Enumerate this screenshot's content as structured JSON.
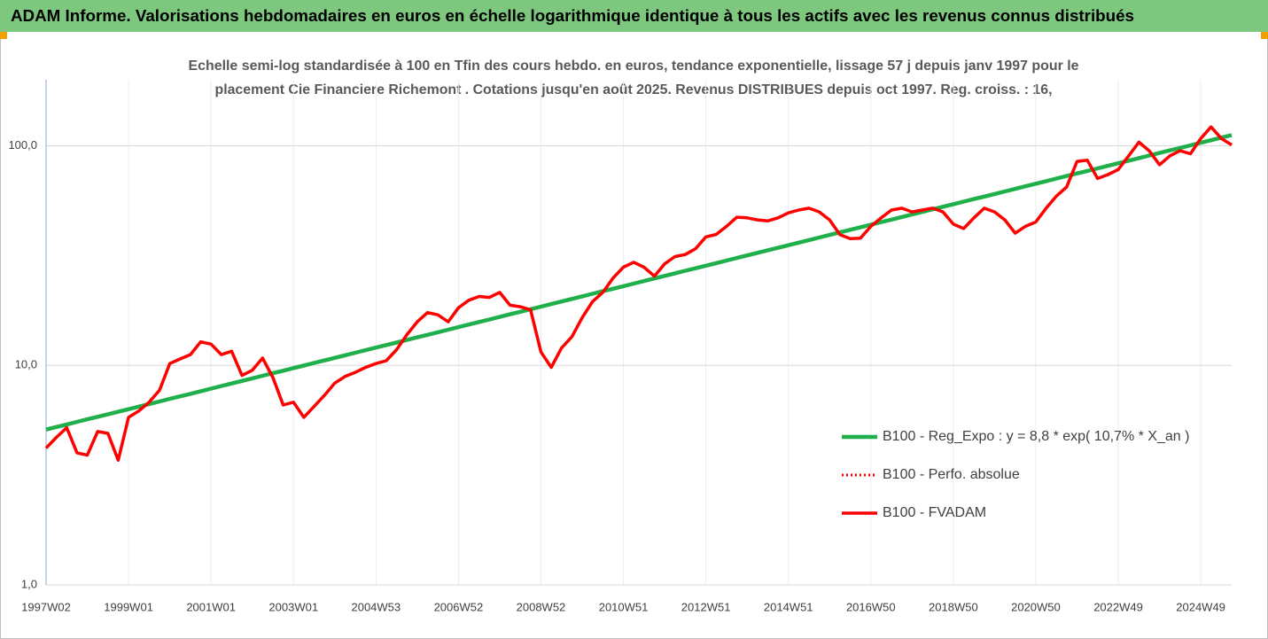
{
  "header": {
    "title": "ADAM Informe. Valorisations hebdomadaires en euros en échelle logarithmique identique à tous les actifs avec les revenus connus distribués"
  },
  "chart_data": {
    "type": "line",
    "title": [
      "Echelle semi-log standardisée à 100 en Tfin des cours hebdo. en euros, tendance exponentielle, lissage 57 j depuis janv 1997 pour le",
      "placement Cie Financiere Richemont . Cotations jusqu'en août 2025. Revenus DISTRIBUES depuis oct 1997. Reg. croiss. : 16,"
    ],
    "log_scale": true,
    "grid": true,
    "legend": "right",
    "ylim": [
      1,
      200
    ],
    "yticks": [
      {
        "value": 1,
        "label": "1,0"
      },
      {
        "value": 10,
        "label": "10,0"
      },
      {
        "value": 100,
        "label": "100,0"
      }
    ],
    "categories": [
      "1997W02",
      null,
      null,
      null,
      null,
      null,
      null,
      null,
      "1999W01",
      null,
      null,
      null,
      null,
      null,
      null,
      null,
      "2001W01",
      null,
      null,
      null,
      null,
      null,
      null,
      null,
      "2003W01",
      null,
      null,
      null,
      null,
      null,
      null,
      null,
      "2004W53",
      null,
      null,
      null,
      null,
      null,
      null,
      null,
      "2006W52",
      null,
      null,
      null,
      null,
      null,
      null,
      null,
      "2008W52",
      null,
      null,
      null,
      null,
      null,
      null,
      null,
      "2010W51",
      null,
      null,
      null,
      null,
      null,
      null,
      null,
      "2012W51",
      null,
      null,
      null,
      null,
      null,
      null,
      null,
      "2014W51",
      null,
      null,
      null,
      null,
      null,
      null,
      null,
      "2016W50",
      null,
      null,
      null,
      null,
      null,
      null,
      null,
      "2018W50",
      null,
      null,
      null,
      null,
      null,
      null,
      null,
      "2020W50",
      null,
      null,
      null,
      null,
      null,
      null,
      null,
      "2022W49",
      null,
      null,
      null,
      null,
      null,
      null,
      null,
      "2024W49",
      null,
      null,
      null
    ],
    "series": [
      {
        "name": "B100 - Reg_Expo : y = 8,8 * exp( 10,7% *  X_an )",
        "color": "#1fb04b",
        "style": "solid",
        "values": [
          5.1,
          5.24,
          5.38,
          5.53,
          5.68,
          5.83,
          5.99,
          6.15,
          6.32,
          6.49,
          6.67,
          6.85,
          7.04,
          7.23,
          7.42,
          7.63,
          7.84,
          8.05,
          8.27,
          8.5,
          8.73,
          8.97,
          9.21,
          9.46,
          9.72,
          9.98,
          10.26,
          10.53,
          10.82,
          11.12,
          11.42,
          11.73,
          12.05,
          12.38,
          12.71,
          13.06,
          13.42,
          13.78,
          14.16,
          14.54,
          14.94,
          15.35,
          15.76,
          16.19,
          16.63,
          17.09,
          17.55,
          18.03,
          18.52,
          19.02,
          19.54,
          20.07,
          20.62,
          21.18,
          21.76,
          22.35,
          22.96,
          23.58,
          24.22,
          24.88,
          25.56,
          26.26,
          26.97,
          27.7,
          28.46,
          29.23,
          30.03,
          30.85,
          31.68,
          32.55,
          33.43,
          34.34,
          35.28,
          36.24,
          37.22,
          38.24,
          39.28,
          40.35,
          41.44,
          42.57,
          43.74,
          44.93,
          46.15,
          47.41,
          48.7,
          50.02,
          51.38,
          52.78,
          54.22,
          55.7,
          57.21,
          58.76,
          60.36,
          62.01,
          63.69,
          65.42,
          67.22,
          69.05,
          70.92,
          72.85,
          74.84,
          76.87,
          78.96,
          81.11,
          83.33,
          85.6,
          87.92,
          90.31,
          92.77,
          95.3,
          97.89,
          100.5,
          103.3,
          106.1,
          109.0,
          112.0
        ]
      },
      {
        "name": "B100 - Perfo. absolue",
        "color": "#ff0000",
        "style": "dotted",
        "values": [
          4.2,
          4.7,
          5.2,
          4.0,
          3.9,
          5.0,
          4.9,
          3.7,
          5.8,
          6.2,
          6.8,
          7.7,
          10.2,
          10.7,
          11.2,
          12.8,
          12.5,
          11.2,
          11.6,
          9.0,
          9.5,
          10.8,
          8.8,
          6.6,
          6.8,
          5.8,
          6.5,
          7.3,
          8.3,
          8.9,
          9.3,
          9.8,
          10.2,
          10.5,
          11.8,
          13.8,
          15.8,
          17.4,
          17.0,
          15.8,
          18.3,
          19.8,
          20.6,
          20.4,
          21.5,
          18.8,
          18.5,
          17.9,
          11.5,
          9.8,
          12.0,
          13.5,
          16.5,
          19.5,
          21.5,
          25,
          28,
          29.5,
          28,
          25.5,
          29,
          31.3,
          32,
          34,
          38.5,
          39.5,
          43,
          47.3,
          47,
          46,
          45.5,
          47,
          49.5,
          51,
          52,
          50,
          46,
          39.4,
          37.8,
          38,
          43,
          47,
          51,
          52,
          50,
          51,
          52,
          50,
          44,
          42,
          47,
          52,
          50,
          46,
          40,
          43,
          45,
          52,
          59,
          65,
          85,
          86,
          71,
          74,
          78,
          90,
          104,
          95,
          82,
          90,
          95,
          92,
          108,
          122,
          108,
          101
        ]
      },
      {
        "name": "B100 - FVADAM",
        "color": "#ff0000",
        "style": "solid",
        "values": [
          4.2,
          4.7,
          5.2,
          4.0,
          3.9,
          5.0,
          4.9,
          3.7,
          5.8,
          6.2,
          6.8,
          7.7,
          10.2,
          10.7,
          11.2,
          12.8,
          12.5,
          11.2,
          11.6,
          9.0,
          9.5,
          10.8,
          8.8,
          6.6,
          6.8,
          5.8,
          6.5,
          7.3,
          8.3,
          8.9,
          9.3,
          9.8,
          10.2,
          10.5,
          11.8,
          13.8,
          15.8,
          17.4,
          17.0,
          15.8,
          18.3,
          19.8,
          20.6,
          20.4,
          21.5,
          18.8,
          18.5,
          17.9,
          11.5,
          9.8,
          12.0,
          13.5,
          16.5,
          19.5,
          21.5,
          25,
          28,
          29.5,
          28,
          25.5,
          29,
          31.3,
          32,
          34,
          38.5,
          39.5,
          43,
          47.3,
          47,
          46,
          45.5,
          47,
          49.5,
          51,
          52,
          50,
          46,
          39.4,
          37.8,
          38,
          43,
          47,
          51,
          52,
          50,
          51,
          52,
          50,
          44,
          42,
          47,
          52,
          50,
          46,
          40,
          43,
          45,
          52,
          59,
          65,
          85,
          86,
          71,
          74,
          78,
          90,
          104,
          95,
          82,
          90,
          95,
          92,
          108,
          122,
          108,
          101
        ]
      }
    ]
  }
}
